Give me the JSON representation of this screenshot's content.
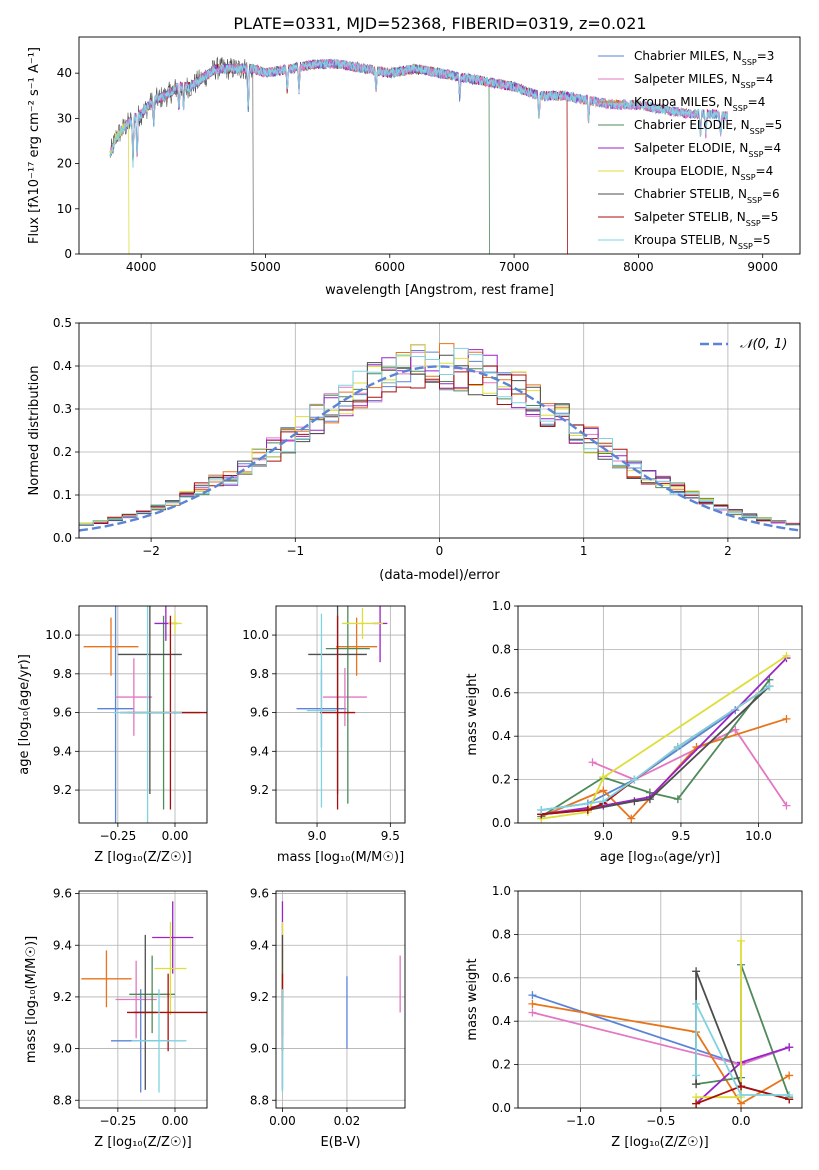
{
  "title": "PLATE=0331, MJD=52368, FIBERID=0319, z=0.021",
  "models": [
    {
      "name": "Chabrier MILES",
      "nssp": "3",
      "color": "#5b84d6"
    },
    {
      "name": "Salpeter MILES",
      "nssp": "4",
      "color": "#e377c2"
    },
    {
      "name": "Kroupa MILES",
      "nssp": "4",
      "color": "#e8741b"
    },
    {
      "name": "Chabrier ELODIE",
      "nssp": "5",
      "color": "#4f8a5b"
    },
    {
      "name": "Salpeter ELODIE",
      "nssp": "4",
      "color": "#9a23c9"
    },
    {
      "name": "Kroupa ELODIE",
      "nssp": "4",
      "color": "#dede3a"
    },
    {
      "name": "Chabrier STELIB",
      "nssp": "6",
      "color": "#4d4d4d"
    },
    {
      "name": "Salpeter STELIB",
      "nssp": "5",
      "color": "#a80e0e"
    },
    {
      "name": "Kroupa STELIB",
      "nssp": "5",
      "color": "#7fd3e0"
    }
  ],
  "chart_data": [
    {
      "type": "line",
      "id": "spectrum",
      "xlabel": "wavelength [Angstrom, rest frame]",
      "ylabel": "Flux [fλ10⁻¹⁷ erg cm⁻² s⁻¹ A⁻¹]",
      "xlim": [
        3500,
        9300
      ],
      "ylim": [
        0,
        48
      ],
      "xticks": [
        4000,
        5000,
        6000,
        7000,
        8000,
        9000
      ],
      "yticks": [
        0,
        10,
        20,
        30,
        40
      ],
      "continuum": {
        "x": [
          3750,
          3800,
          3900,
          4000,
          4100,
          4200,
          4300,
          4400,
          4500,
          4600,
          4700,
          4800,
          4900,
          5000,
          5200,
          5400,
          5600,
          5800,
          6000,
          6200,
          6400,
          6600,
          6800,
          7000,
          7200,
          7400,
          7600,
          7800,
          8000,
          8200,
          8400,
          8600,
          8800,
          9000
        ],
        "y": [
          22,
          26,
          29,
          31,
          34,
          35,
          37,
          37,
          39,
          41,
          41,
          41,
          41,
          40,
          41,
          42,
          42,
          41,
          40,
          41,
          40,
          39,
          38,
          37,
          35,
          35,
          34,
          33,
          33,
          32,
          31,
          31,
          30,
          31
        ]
      },
      "absorption_lines": [
        3934,
        3968,
        4102,
        4304,
        4341,
        4861,
        5175,
        5270,
        5890,
        6563,
        7200,
        7600,
        8500,
        8542,
        8662
      ],
      "truncations": [
        {
          "model": 5,
          "x": 3900
        },
        {
          "model": 6,
          "x": 4900
        },
        {
          "model": 3,
          "x": 6800
        },
        {
          "model": 7,
          "x": 7430
        }
      ],
      "legend": "upper right"
    },
    {
      "type": "histogram",
      "id": "residuals",
      "xlabel": "(data-model)/error",
      "ylabel": "Normed distribution",
      "xlim": [
        -2.5,
        2.5
      ],
      "ylim": [
        0,
        0.5
      ],
      "xticks": [
        -2,
        -1,
        0,
        1,
        2
      ],
      "yticks": [
        0.0,
        0.1,
        0.2,
        0.3,
        0.4,
        0.5
      ],
      "bin_width": 0.1,
      "reference": {
        "name": "𝒩(0, 1)",
        "mean": 0,
        "sigma": 1,
        "color": "#5b84d6"
      },
      "legend": "upper right",
      "grid": true
    },
    {
      "type": "errorbar",
      "id": "age-vs-z",
      "xlabel": "Z [log₁₀(Z/Z☉)]",
      "ylabel": "age  [log₁₀(age/yr)]",
      "xlim": [
        -0.42,
        0.14
      ],
      "ylim": [
        9.03,
        10.15
      ],
      "xticks": [
        -0.25,
        0.0
      ],
      "yticks": [
        9.2,
        9.4,
        9.6,
        9.8,
        10.0
      ],
      "points": [
        {
          "x": -0.26,
          "y": 9.62,
          "xerr": 0.08,
          "yerr": 0.6,
          "model": 0
        },
        {
          "x": -0.18,
          "y": 9.68,
          "xerr": 0.08,
          "yerr": 0.2,
          "model": 1
        },
        {
          "x": -0.28,
          "y": 9.94,
          "xerr": 0.12,
          "yerr": 0.15,
          "model": 2
        },
        {
          "x": -0.05,
          "y": 9.6,
          "xerr": 0.16,
          "yerr": 0.5,
          "model": 3
        },
        {
          "x": -0.04,
          "y": 10.06,
          "xerr": 0.05,
          "yerr": 0.09,
          "model": 4
        },
        {
          "x": 0.0,
          "y": 10.06,
          "xerr": 0.03,
          "yerr": 0.05,
          "model": 5
        },
        {
          "x": -0.11,
          "y": 9.9,
          "xerr": 0.14,
          "yerr": 0.72,
          "model": 6
        },
        {
          "x": -0.02,
          "y": 9.6,
          "xerr": 0.22,
          "yerr": 0.5,
          "model": 7
        },
        {
          "x": -0.12,
          "y": 9.6,
          "xerr": 0.15,
          "yerr": 0.6,
          "model": 8
        }
      ]
    },
    {
      "type": "errorbar",
      "id": "age-vs-mass",
      "xlabel": "mass [log₁₀(M/M☉)]",
      "ylabel": "",
      "xlim": [
        8.72,
        9.6
      ],
      "ylim": [
        9.03,
        10.15
      ],
      "xticks": [
        9.0,
        9.5
      ],
      "yticks": [
        9.2,
        9.4,
        9.6,
        9.8,
        10.0
      ],
      "points": [
        {
          "x": 9.03,
          "y": 9.62,
          "xerr": 0.17,
          "yerr": 0.2,
          "model": 0
        },
        {
          "x": 9.19,
          "y": 9.68,
          "xerr": 0.15,
          "yerr": 0.15,
          "model": 1
        },
        {
          "x": 9.27,
          "y": 9.94,
          "xerr": 0.14,
          "yerr": 0.15,
          "model": 2
        },
        {
          "x": 9.21,
          "y": 9.93,
          "xerr": 0.15,
          "yerr": 0.8,
          "model": 3
        },
        {
          "x": 9.43,
          "y": 10.06,
          "xerr": 0.05,
          "yerr": 0.2,
          "model": 4
        },
        {
          "x": 9.31,
          "y": 10.06,
          "xerr": 0.14,
          "yerr": 0.08,
          "model": 5
        },
        {
          "x": 9.14,
          "y": 9.9,
          "xerr": 0.2,
          "yerr": 0.72,
          "model": 6
        },
        {
          "x": 9.14,
          "y": 9.6,
          "xerr": 0.12,
          "yerr": 0.5,
          "model": 7
        },
        {
          "x": 9.03,
          "y": 9.61,
          "xerr": 0.1,
          "yerr": 0.5,
          "model": 8
        }
      ]
    },
    {
      "type": "line",
      "id": "mass-weight-vs-age",
      "xlabel": "age  [log₁₀(age/yr)]",
      "ylabel": "mass weight",
      "xlim": [
        8.45,
        10.28
      ],
      "ylim": [
        0,
        1
      ],
      "xticks": [
        9.0,
        9.5,
        10.0
      ],
      "yticks": [
        0.0,
        0.2,
        0.4,
        0.6,
        0.8,
        1.0
      ],
      "series": [
        {
          "model": 0,
          "x": [
            8.6,
            8.9,
            9.2,
            9.85
          ],
          "y": [
            0.06,
            0.09,
            0.2,
            0.52
          ]
        },
        {
          "model": 1,
          "x": [
            8.93,
            9.2,
            9.85,
            10.18
          ],
          "y": [
            0.28,
            0.2,
            0.43,
            0.08
          ]
        },
        {
          "model": 2,
          "x": [
            8.6,
            9.0,
            9.18,
            9.6,
            10.18
          ],
          "y": [
            0.03,
            0.15,
            0.02,
            0.35,
            0.48
          ]
        },
        {
          "model": 3,
          "x": [
            8.6,
            9.0,
            9.3,
            9.48,
            10.07
          ],
          "y": [
            0.03,
            0.21,
            0.14,
            0.11,
            0.66
          ]
        },
        {
          "model": 4,
          "x": [
            8.6,
            9.0,
            9.3,
            10.18
          ],
          "y": [
            0.04,
            0.08,
            0.12,
            0.76
          ]
        },
        {
          "model": 5,
          "x": [
            8.6,
            8.9,
            9.0,
            10.18
          ],
          "y": [
            0.02,
            0.05,
            0.21,
            0.77
          ]
        },
        {
          "model": 6,
          "x": [
            8.6,
            8.9,
            9.2,
            9.3,
            10.07
          ],
          "y": [
            0.04,
            0.06,
            0.1,
            0.11,
            0.63
          ]
        },
        {
          "model": 7,
          "x": [
            8.6,
            8.9,
            9.0,
            9.48,
            10.07
          ],
          "y": [
            0.04,
            0.06,
            0.09,
            0.35,
            0.63
          ]
        },
        {
          "model": 8,
          "x": [
            8.6,
            9.0,
            9.2,
            9.48,
            10.07
          ],
          "y": [
            0.06,
            0.1,
            0.2,
            0.35,
            0.63
          ]
        }
      ]
    },
    {
      "type": "errorbar",
      "id": "mass-vs-z",
      "xlabel": "Z [log₁₀(Z/Z☉)]",
      "ylabel": "mass [log₁₀(M/M☉)]",
      "xlim": [
        -0.42,
        0.14
      ],
      "ylim": [
        8.77,
        9.61
      ],
      "xticks": [
        -0.25,
        0.0
      ],
      "yticks": [
        8.8,
        9.0,
        9.2,
        9.4,
        9.6
      ],
      "points": [
        {
          "x": -0.15,
          "y": 9.03,
          "xerr": 0.13,
          "yerr": 0.2,
          "model": 0
        },
        {
          "x": -0.17,
          "y": 9.19,
          "xerr": 0.09,
          "yerr": 0.15,
          "model": 1
        },
        {
          "x": -0.3,
          "y": 9.27,
          "xerr": 0.11,
          "yerr": 0.11,
          "model": 2
        },
        {
          "x": -0.1,
          "y": 9.21,
          "xerr": 0.1,
          "yerr": 0.15,
          "model": 3
        },
        {
          "x": -0.01,
          "y": 9.43,
          "xerr": 0.09,
          "yerr": 0.14,
          "model": 4
        },
        {
          "x": -0.02,
          "y": 9.31,
          "xerr": 0.07,
          "yerr": 0.18,
          "model": 5
        },
        {
          "x": -0.13,
          "y": 9.14,
          "xerr": 0.05,
          "yerr": 0.3,
          "model": 6
        },
        {
          "x": -0.03,
          "y": 9.14,
          "xerr": 0.18,
          "yerr": 0.15,
          "model": 7
        },
        {
          "x": -0.07,
          "y": 9.03,
          "xerr": 0.12,
          "yerr": 0.2,
          "model": 8
        }
      ]
    },
    {
      "type": "errorbar",
      "id": "mass-vs-ebv",
      "xlabel": "E(B-V)",
      "ylabel": "",
      "xlim": [
        -0.002,
        0.038
      ],
      "ylim": [
        8.77,
        9.61
      ],
      "xticks": [
        0.0,
        0.02
      ],
      "yticks": [
        8.8,
        9.0,
        9.2,
        9.4,
        9.6
      ],
      "points": [
        {
          "x": 0.02,
          "y": 9.14,
          "xerr": 0,
          "yerr": 0.14,
          "model": 0
        },
        {
          "x": 0.0365,
          "y": 9.25,
          "xerr": 0,
          "yerr": 0.11,
          "model": 1
        },
        {
          "x": 0.0,
          "y": 9.27,
          "xerr": 0,
          "yerr": 0.12,
          "model": 2
        },
        {
          "x": 0.0,
          "y": 9.2,
          "xerr": 0,
          "yerr": 0.15,
          "model": 3
        },
        {
          "x": 0.0,
          "y": 9.46,
          "xerr": 0,
          "yerr": 0.11,
          "model": 4
        },
        {
          "x": 0.0,
          "y": 9.34,
          "xerr": 0,
          "yerr": 0.15,
          "model": 5
        },
        {
          "x": 0.0,
          "y": 9.14,
          "xerr": 0,
          "yerr": 0.3,
          "model": 6
        },
        {
          "x": 0.0,
          "y": 9.14,
          "xerr": 0,
          "yerr": 0.15,
          "model": 7
        },
        {
          "x": 0.0,
          "y": 9.03,
          "xerr": 0,
          "yerr": 0.2,
          "model": 8
        }
      ]
    },
    {
      "type": "line",
      "id": "mass-weight-vs-z",
      "xlabel": "Z [log₁₀(Z/Z☉)]",
      "ylabel": "mass weight",
      "xlim": [
        -1.39,
        0.38
      ],
      "ylim": [
        0,
        1
      ],
      "xticks": [
        -1.0,
        -0.5,
        0.0
      ],
      "yticks": [
        0.0,
        0.2,
        0.4,
        0.6,
        0.8,
        1.0
      ],
      "series": [
        {
          "model": 0,
          "x": [
            -1.3,
            0.0,
            0.3
          ],
          "y": [
            0.52,
            0.2,
            0.28
          ]
        },
        {
          "model": 1,
          "x": [
            -1.3,
            0.0,
            0.3
          ],
          "y": [
            0.44,
            0.2,
            0.28
          ]
        },
        {
          "model": 2,
          "x": [
            -1.3,
            -0.28,
            0.0,
            0.3
          ],
          "y": [
            0.48,
            0.35,
            0.02,
            0.15
          ]
        },
        {
          "model": 3,
          "x": [
            -0.28,
            0.0,
            0.0,
            0.3
          ],
          "y": [
            0.11,
            0.14,
            0.66,
            0.05
          ]
        },
        {
          "model": 4,
          "x": [
            -0.28,
            0.0,
            0.3
          ],
          "y": [
            0.02,
            0.21,
            0.28
          ]
        },
        {
          "model": 5,
          "x": [
            -0.28,
            -0.28,
            0.0,
            0.0
          ],
          "y": [
            0.02,
            0.05,
            0.05,
            0.77
          ]
        },
        {
          "model": 6,
          "x": [
            -0.28,
            -0.28,
            0.0,
            0.3
          ],
          "y": [
            0.11,
            0.63,
            0.1,
            0.04
          ]
        },
        {
          "model": 7,
          "x": [
            -0.28,
            0.0,
            0.3
          ],
          "y": [
            0.02,
            0.1,
            0.04
          ]
        },
        {
          "model": 8,
          "x": [
            -0.28,
            -0.28,
            0.0,
            0.3
          ],
          "y": [
            0.15,
            0.48,
            0.06,
            0.06
          ]
        }
      ]
    }
  ]
}
